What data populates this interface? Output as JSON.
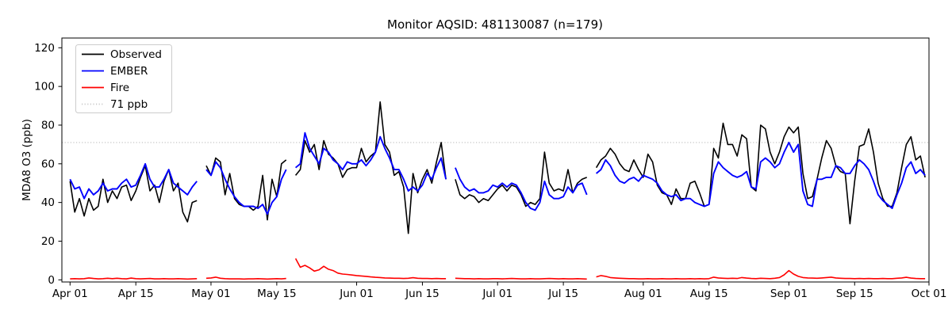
{
  "title": "Monitor AQSID: 481130087 (n=179)",
  "axes": {
    "y_label": "MDA8 O3 (ppb)",
    "y_ticks": [
      0,
      20,
      40,
      60,
      80,
      100,
      120
    ],
    "x_ticks": [
      {
        "label": "Apr 01",
        "day": 0
      },
      {
        "label": "Apr 15",
        "day": 14
      },
      {
        "label": "May 01",
        "day": 30
      },
      {
        "label": "May 15",
        "day": 44
      },
      {
        "label": "Jun 01",
        "day": 61
      },
      {
        "label": "Jun 15",
        "day": 75
      },
      {
        "label": "Jul 01",
        "day": 91
      },
      {
        "label": "Jul 15",
        "day": 105
      },
      {
        "label": "Aug 01",
        "day": 122
      },
      {
        "label": "Aug 15",
        "day": 136
      },
      {
        "label": "Sep 01",
        "day": 153
      },
      {
        "label": "Sep 15",
        "day": 167
      },
      {
        "label": "Oct 01",
        "day": 183
      }
    ]
  },
  "legend": {
    "items": [
      {
        "label": "Observed",
        "color": "#000000",
        "dash": "solid"
      },
      {
        "label": "EMBER",
        "color": "#0000ff",
        "dash": "solid"
      },
      {
        "label": "Fire",
        "color": "#ff0000",
        "dash": "solid"
      },
      {
        "label": "71 ppb",
        "color": "#c9c9c9",
        "dash": "dotted"
      }
    ]
  },
  "chart_data": {
    "type": "line",
    "title": "Monitor AQSID: 481130087 (n=179)",
    "ylabel": "MDA8 O3 (ppb)",
    "ylim": [
      0,
      125
    ],
    "x_range": [
      "Apr 01",
      "Oct 01"
    ],
    "x_unit": "day",
    "n_points": 179,
    "threshold_ppb": 71,
    "missing_days": [
      "Apr 29",
      "May 18",
      "Jun 21",
      "Jul 21"
    ],
    "legend_position": "upper-left",
    "series": [
      {
        "name": "Observed",
        "color": "#000000",
        "values": [
          51,
          35,
          42,
          33,
          42,
          36,
          38,
          52,
          40,
          46,
          42,
          48,
          49,
          41,
          46,
          53,
          59,
          46,
          49,
          40,
          51,
          57,
          46,
          50,
          35,
          30,
          40,
          41,
          null,
          59,
          54,
          63,
          61,
          44,
          55,
          42,
          39,
          38,
          38,
          36,
          38,
          54,
          31,
          52,
          43,
          60,
          62,
          null,
          54,
          57,
          72,
          66,
          70,
          57,
          72,
          65,
          63,
          60,
          53,
          57,
          58,
          58,
          68,
          61,
          64,
          66,
          92,
          70,
          66,
          54,
          56,
          48,
          24,
          55,
          45,
          52,
          57,
          50,
          61,
          71,
          52,
          null,
          52,
          44,
          42,
          44,
          43,
          40,
          42,
          41,
          44,
          47,
          49,
          46,
          49,
          48,
          44,
          38,
          40,
          39,
          42,
          66,
          50,
          46,
          47,
          46,
          57,
          45,
          50,
          52,
          53,
          null,
          58,
          62,
          64,
          68,
          65,
          60,
          57,
          56,
          62,
          57,
          53,
          65,
          61,
          49,
          45,
          44,
          39,
          47,
          42,
          42,
          50,
          51,
          45,
          38,
          39,
          68,
          63,
          81,
          70,
          70,
          64,
          75,
          73,
          48,
          46,
          80,
          78,
          66,
          60,
          66,
          74,
          79,
          76,
          79,
          55,
          42,
          43,
          52,
          63,
          72,
          68,
          59,
          56,
          55,
          29,
          51,
          69,
          70,
          78,
          66,
          50,
          42,
          38,
          38,
          45,
          58,
          70,
          74,
          62,
          64,
          53
        ]
      },
      {
        "name": "EMBER",
        "color": "#0000ff",
        "values": [
          52,
          47,
          48,
          42,
          47,
          44,
          46,
          50,
          46,
          47,
          47,
          50,
          52,
          48,
          49,
          54,
          60,
          52,
          48,
          48,
          52,
          57,
          50,
          48,
          46,
          44,
          48,
          51,
          null,
          57,
          54,
          61,
          58,
          52,
          47,
          43,
          40,
          38,
          38,
          38,
          37,
          39,
          34,
          40,
          43,
          52,
          57,
          null,
          58,
          60,
          76,
          68,
          64,
          60,
          68,
          66,
          62,
          60,
          57,
          61,
          60,
          60,
          62,
          59,
          62,
          66,
          74,
          68,
          63,
          57,
          57,
          52,
          46,
          48,
          46,
          49,
          55,
          52,
          58,
          63,
          52,
          null,
          58,
          52,
          48,
          46,
          47,
          45,
          45,
          46,
          49,
          48,
          50,
          48,
          50,
          49,
          45,
          40,
          37,
          36,
          40,
          51,
          44,
          42,
          42,
          43,
          48,
          45,
          49,
          50,
          44,
          null,
          55,
          57,
          62,
          59,
          54,
          51,
          50,
          52,
          53,
          51,
          54,
          53,
          52,
          50,
          46,
          44,
          43,
          44,
          41,
          42,
          42,
          40,
          39,
          38,
          39,
          55,
          61,
          58,
          56,
          54,
          53,
          54,
          56,
          48,
          47,
          61,
          63,
          61,
          58,
          60,
          66,
          71,
          66,
          70,
          46,
          39,
          38,
          52,
          52,
          53,
          53,
          59,
          58,
          55,
          55,
          59,
          62,
          60,
          57,
          51,
          44,
          41,
          39,
          37,
          44,
          50,
          58,
          61,
          55,
          57,
          54
        ]
      },
      {
        "name": "Fire",
        "color": "#ff0000",
        "values": [
          0.5,
          0.6,
          0.5,
          0.6,
          1.0,
          0.7,
          0.5,
          0.6,
          0.8,
          0.6,
          0.8,
          0.6,
          0.5,
          0.9,
          0.6,
          0.5,
          0.6,
          0.7,
          0.5,
          0.5,
          0.6,
          0.5,
          0.5,
          0.6,
          0.5,
          0.4,
          0.5,
          0.6,
          null,
          0.8,
          1.0,
          1.4,
          0.8,
          0.6,
          0.5,
          0.5,
          0.5,
          0.4,
          0.5,
          0.5,
          0.6,
          0.5,
          0.4,
          0.5,
          0.6,
          0.5,
          0.7,
          null,
          11.0,
          6.5,
          7.5,
          6.2,
          4.5,
          5.2,
          7.0,
          5.5,
          4.8,
          3.5,
          3.0,
          2.8,
          2.5,
          2.2,
          2.0,
          1.8,
          1.5,
          1.3,
          1.2,
          1.0,
          0.9,
          0.8,
          0.8,
          0.7,
          0.8,
          1.1,
          0.8,
          0.7,
          0.7,
          0.6,
          0.7,
          0.6,
          0.6,
          null,
          0.8,
          0.7,
          0.6,
          0.6,
          0.5,
          0.6,
          0.5,
          0.5,
          0.6,
          0.6,
          0.5,
          0.6,
          0.7,
          0.6,
          0.5,
          0.5,
          0.6,
          0.5,
          0.5,
          0.6,
          0.7,
          0.6,
          0.5,
          0.6,
          0.5,
          0.5,
          0.6,
          0.5,
          0.4,
          null,
          1.5,
          2.2,
          1.8,
          1.2,
          1.0,
          0.8,
          0.7,
          0.6,
          0.6,
          0.5,
          0.5,
          0.6,
          0.5,
          0.5,
          0.6,
          0.5,
          0.5,
          0.6,
          0.5,
          0.5,
          0.6,
          0.5,
          0.6,
          0.5,
          0.6,
          1.4,
          1.0,
          0.8,
          0.7,
          0.8,
          0.7,
          1.2,
          0.9,
          0.7,
          0.6,
          0.8,
          0.7,
          0.6,
          0.8,
          1.2,
          2.6,
          4.8,
          3.0,
          1.8,
          1.2,
          1.0,
          0.9,
          0.8,
          1.0,
          1.2,
          1.4,
          1.0,
          0.8,
          0.7,
          0.7,
          0.6,
          0.7,
          0.6,
          0.7,
          0.6,
          0.6,
          0.7,
          0.6,
          0.6,
          0.8,
          1.0,
          1.3,
          0.9,
          0.7,
          0.6,
          0.6
        ]
      }
    ]
  }
}
